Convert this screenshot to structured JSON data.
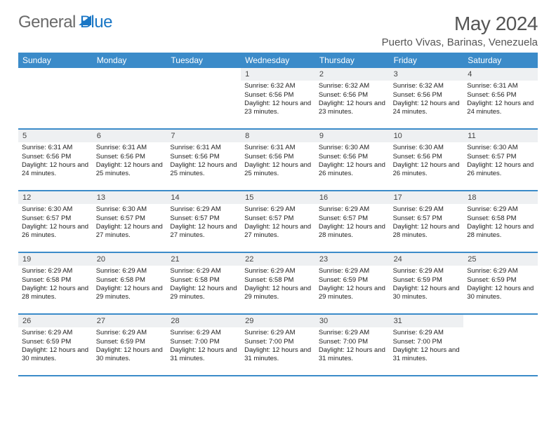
{
  "logo": {
    "text1": "General",
    "text2": "Blue"
  },
  "title": "May 2024",
  "location": "Puerto Vivas, Barinas, Venezuela",
  "colors": {
    "header_bar": "#3b8bc9",
    "daynum_bg": "#eef0f2",
    "logo_blue": "#1976c5",
    "text": "#333333",
    "title_text": "#555555"
  },
  "weekdays": [
    "Sunday",
    "Monday",
    "Tuesday",
    "Wednesday",
    "Thursday",
    "Friday",
    "Saturday"
  ],
  "weeks": [
    [
      {
        "empty": true
      },
      {
        "empty": true
      },
      {
        "empty": true
      },
      {
        "n": "1",
        "sunrise": "6:32 AM",
        "sunset": "6:56 PM",
        "daylight": "12 hours and 23 minutes."
      },
      {
        "n": "2",
        "sunrise": "6:32 AM",
        "sunset": "6:56 PM",
        "daylight": "12 hours and 23 minutes."
      },
      {
        "n": "3",
        "sunrise": "6:32 AM",
        "sunset": "6:56 PM",
        "daylight": "12 hours and 24 minutes."
      },
      {
        "n": "4",
        "sunrise": "6:31 AM",
        "sunset": "6:56 PM",
        "daylight": "12 hours and 24 minutes."
      }
    ],
    [
      {
        "n": "5",
        "sunrise": "6:31 AM",
        "sunset": "6:56 PM",
        "daylight": "12 hours and 24 minutes."
      },
      {
        "n": "6",
        "sunrise": "6:31 AM",
        "sunset": "6:56 PM",
        "daylight": "12 hours and 25 minutes."
      },
      {
        "n": "7",
        "sunrise": "6:31 AM",
        "sunset": "6:56 PM",
        "daylight": "12 hours and 25 minutes."
      },
      {
        "n": "8",
        "sunrise": "6:31 AM",
        "sunset": "6:56 PM",
        "daylight": "12 hours and 25 minutes."
      },
      {
        "n": "9",
        "sunrise": "6:30 AM",
        "sunset": "6:56 PM",
        "daylight": "12 hours and 26 minutes."
      },
      {
        "n": "10",
        "sunrise": "6:30 AM",
        "sunset": "6:56 PM",
        "daylight": "12 hours and 26 minutes."
      },
      {
        "n": "11",
        "sunrise": "6:30 AM",
        "sunset": "6:57 PM",
        "daylight": "12 hours and 26 minutes."
      }
    ],
    [
      {
        "n": "12",
        "sunrise": "6:30 AM",
        "sunset": "6:57 PM",
        "daylight": "12 hours and 26 minutes."
      },
      {
        "n": "13",
        "sunrise": "6:30 AM",
        "sunset": "6:57 PM",
        "daylight": "12 hours and 27 minutes."
      },
      {
        "n": "14",
        "sunrise": "6:29 AM",
        "sunset": "6:57 PM",
        "daylight": "12 hours and 27 minutes."
      },
      {
        "n": "15",
        "sunrise": "6:29 AM",
        "sunset": "6:57 PM",
        "daylight": "12 hours and 27 minutes."
      },
      {
        "n": "16",
        "sunrise": "6:29 AM",
        "sunset": "6:57 PM",
        "daylight": "12 hours and 28 minutes."
      },
      {
        "n": "17",
        "sunrise": "6:29 AM",
        "sunset": "6:57 PM",
        "daylight": "12 hours and 28 minutes."
      },
      {
        "n": "18",
        "sunrise": "6:29 AM",
        "sunset": "6:58 PM",
        "daylight": "12 hours and 28 minutes."
      }
    ],
    [
      {
        "n": "19",
        "sunrise": "6:29 AM",
        "sunset": "6:58 PM",
        "daylight": "12 hours and 28 minutes."
      },
      {
        "n": "20",
        "sunrise": "6:29 AM",
        "sunset": "6:58 PM",
        "daylight": "12 hours and 29 minutes."
      },
      {
        "n": "21",
        "sunrise": "6:29 AM",
        "sunset": "6:58 PM",
        "daylight": "12 hours and 29 minutes."
      },
      {
        "n": "22",
        "sunrise": "6:29 AM",
        "sunset": "6:58 PM",
        "daylight": "12 hours and 29 minutes."
      },
      {
        "n": "23",
        "sunrise": "6:29 AM",
        "sunset": "6:59 PM",
        "daylight": "12 hours and 29 minutes."
      },
      {
        "n": "24",
        "sunrise": "6:29 AM",
        "sunset": "6:59 PM",
        "daylight": "12 hours and 30 minutes."
      },
      {
        "n": "25",
        "sunrise": "6:29 AM",
        "sunset": "6:59 PM",
        "daylight": "12 hours and 30 minutes."
      }
    ],
    [
      {
        "n": "26",
        "sunrise": "6:29 AM",
        "sunset": "6:59 PM",
        "daylight": "12 hours and 30 minutes."
      },
      {
        "n": "27",
        "sunrise": "6:29 AM",
        "sunset": "6:59 PM",
        "daylight": "12 hours and 30 minutes."
      },
      {
        "n": "28",
        "sunrise": "6:29 AM",
        "sunset": "7:00 PM",
        "daylight": "12 hours and 31 minutes."
      },
      {
        "n": "29",
        "sunrise": "6:29 AM",
        "sunset": "7:00 PM",
        "daylight": "12 hours and 31 minutes."
      },
      {
        "n": "30",
        "sunrise": "6:29 AM",
        "sunset": "7:00 PM",
        "daylight": "12 hours and 31 minutes."
      },
      {
        "n": "31",
        "sunrise": "6:29 AM",
        "sunset": "7:00 PM",
        "daylight": "12 hours and 31 minutes."
      },
      {
        "empty": true
      }
    ]
  ],
  "labels": {
    "sunrise": "Sunrise:",
    "sunset": "Sunset:",
    "daylight": "Daylight:"
  }
}
